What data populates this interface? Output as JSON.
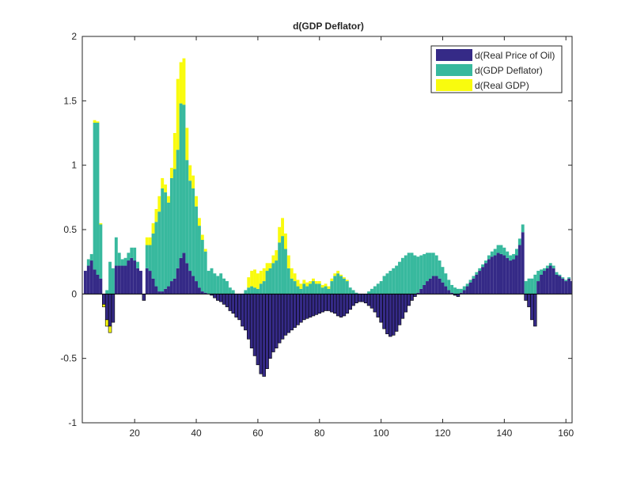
{
  "chart_data": {
    "type": "bar",
    "stacked": true,
    "title": "d(GDP Deflator)",
    "xlabel": "",
    "ylabel": "",
    "xlim": [
      3,
      162
    ],
    "ylim": [
      -1,
      2
    ],
    "xticks": [
      20,
      40,
      60,
      80,
      100,
      120,
      140,
      160
    ],
    "yticks": [
      -1,
      -0.5,
      0,
      0.5,
      1,
      1.5,
      2
    ],
    "grid": false,
    "legend_position": "top-right",
    "x_start": 4,
    "series": [
      {
        "name": "d(Real Price of Oil)",
        "color": "#352a87",
        "values": [
          0.18,
          0.22,
          0.26,
          0.19,
          0.15,
          0.12,
          -0.08,
          -0.2,
          -0.25,
          -0.22,
          0.22,
          0.22,
          0.22,
          0.22,
          0.26,
          0.28,
          0.26,
          0.2,
          0.18,
          -0.05,
          0.2,
          0.18,
          0.12,
          0.06,
          0.02,
          0.02,
          0.04,
          0.06,
          0.1,
          0.12,
          0.2,
          0.28,
          0.32,
          0.24,
          0.18,
          0.14,
          0.1,
          0.05,
          0.02,
          0.01,
          0.0,
          -0.01,
          -0.03,
          -0.05,
          -0.06,
          -0.08,
          -0.1,
          -0.13,
          -0.15,
          -0.18,
          -0.2,
          -0.25,
          -0.28,
          -0.35,
          -0.42,
          -0.48,
          -0.55,
          -0.62,
          -0.64,
          -0.58,
          -0.5,
          -0.45,
          -0.42,
          -0.38,
          -0.35,
          -0.32,
          -0.3,
          -0.28,
          -0.26,
          -0.24,
          -0.22,
          -0.2,
          -0.19,
          -0.18,
          -0.17,
          -0.16,
          -0.15,
          -0.14,
          -0.13,
          -0.13,
          -0.14,
          -0.15,
          -0.17,
          -0.18,
          -0.17,
          -0.15,
          -0.12,
          -0.09,
          -0.07,
          -0.06,
          -0.06,
          -0.07,
          -0.09,
          -0.11,
          -0.14,
          -0.18,
          -0.22,
          -0.27,
          -0.31,
          -0.33,
          -0.32,
          -0.29,
          -0.24,
          -0.19,
          -0.14,
          -0.09,
          -0.05,
          -0.02,
          0.01,
          0.04,
          0.07,
          0.1,
          0.12,
          0.14,
          0.14,
          0.12,
          0.09,
          0.06,
          0.03,
          0.01,
          -0.01,
          -0.02,
          0.01,
          0.03,
          0.06,
          0.09,
          0.12,
          0.15,
          0.18,
          0.21,
          0.24,
          0.27,
          0.29,
          0.3,
          0.32,
          0.31,
          0.3,
          0.28,
          0.26,
          0.27,
          0.3,
          0.38,
          0.48,
          -0.05,
          -0.1,
          -0.2,
          -0.25,
          0.1,
          0.15,
          0.18,
          0.2,
          0.22,
          0.2,
          0.15,
          0.14,
          0.12,
          0.1,
          0.12,
          0.1,
          0.08
        ]
      },
      {
        "name": "d(GDP Deflator)",
        "color": "#38b99e",
        "values": [
          0.0,
          0.05,
          0.05,
          1.14,
          1.18,
          0.42,
          0.0,
          0.03,
          0.25,
          0.2,
          0.22,
          0.1,
          0.05,
          0.06,
          0.06,
          0.08,
          0.1,
          0.05,
          0.0,
          0.0,
          0.18,
          0.2,
          0.35,
          0.5,
          0.62,
          0.8,
          0.75,
          0.65,
          0.8,
          0.85,
          0.92,
          1.2,
          1.15,
          0.8,
          0.7,
          0.68,
          0.58,
          0.48,
          0.4,
          0.32,
          0.18,
          0.2,
          0.16,
          0.14,
          0.16,
          0.12,
          0.1,
          0.05,
          0.03,
          0.0,
          0.0,
          0.0,
          0.03,
          0.05,
          0.06,
          0.05,
          0.04,
          0.08,
          0.1,
          0.18,
          0.2,
          0.24,
          0.26,
          0.4,
          0.45,
          0.35,
          0.2,
          0.12,
          0.1,
          0.06,
          0.04,
          0.08,
          0.06,
          0.08,
          0.1,
          0.08,
          0.08,
          0.05,
          0.06,
          0.04,
          0.1,
          0.14,
          0.16,
          0.14,
          0.12,
          0.1,
          0.05,
          0.03,
          0.01,
          0.0,
          0.0,
          0.0,
          0.02,
          0.04,
          0.06,
          0.08,
          0.1,
          0.14,
          0.16,
          0.18,
          0.2,
          0.22,
          0.25,
          0.28,
          0.3,
          0.32,
          0.32,
          0.3,
          0.28,
          0.26,
          0.24,
          0.22,
          0.2,
          0.18,
          0.16,
          0.14,
          0.12,
          0.1,
          0.08,
          0.06,
          0.05,
          0.04,
          0.03,
          0.03,
          0.02,
          0.02,
          0.02,
          0.02,
          0.02,
          0.02,
          0.02,
          0.03,
          0.04,
          0.05,
          0.06,
          0.07,
          0.06,
          0.05,
          0.04,
          0.04,
          0.05,
          0.05,
          0.06,
          0.1,
          0.12,
          0.12,
          0.15,
          0.08,
          0.04,
          0.02,
          0.02,
          0.02,
          0.02,
          0.02,
          0.01,
          0.01,
          0.01,
          0.01,
          0.0,
          0.0,
          0.0
        ]
      },
      {
        "name": "d(Real GDP)",
        "color": "#f9fb0e",
        "values": [
          0.0,
          0.0,
          0.0,
          0.02,
          0.01,
          0.01,
          -0.02,
          -0.05,
          -0.05,
          0.0,
          0.0,
          0.0,
          0.0,
          0.0,
          0.0,
          0.0,
          0.0,
          0.0,
          0.0,
          0.0,
          0.06,
          0.06,
          0.08,
          0.1,
          0.12,
          0.08,
          0.06,
          0.05,
          0.08,
          0.28,
          0.55,
          0.32,
          0.36,
          0.25,
          0.12,
          0.1,
          0.08,
          0.06,
          0.04,
          0.02,
          0.0,
          0.0,
          0.0,
          0.0,
          0.0,
          0.0,
          0.0,
          0.0,
          0.0,
          0.0,
          0.0,
          0.0,
          0.0,
          0.08,
          0.12,
          0.14,
          0.12,
          0.1,
          0.1,
          0.06,
          0.04,
          0.06,
          0.08,
          0.12,
          0.14,
          0.12,
          0.1,
          0.08,
          0.06,
          0.05,
          0.04,
          0.03,
          0.03,
          0.02,
          0.02,
          0.02,
          0.02,
          0.02,
          0.02,
          0.02,
          0.02,
          0.02,
          0.02,
          0.01,
          0.01,
          0.01,
          0.0,
          0.0,
          0.0,
          0.0,
          0.0,
          0.0,
          0.0,
          0.0,
          0.0,
          0.0,
          0.0,
          0.0,
          0.0,
          0.0,
          0.0,
          0.0,
          0.0,
          0.0,
          0.0,
          0.0,
          0.0,
          0.0,
          0.0,
          0.0,
          0.0,
          0.0,
          0.0,
          0.0,
          0.0,
          0.0,
          0.0,
          0.0,
          0.0,
          0.0,
          0.0,
          0.0,
          0.0,
          0.0,
          0.0,
          0.0,
          0.0,
          0.0,
          0.0,
          0.0,
          0.0,
          0.0,
          0.0,
          0.0,
          0.0,
          0.0,
          0.0,
          0.0,
          0.0,
          0.0,
          0.0,
          0.0,
          0.0,
          0.0,
          0.0,
          0.0,
          0.0,
          0.0,
          0.0,
          0.0,
          0.0,
          0.0,
          0.0,
          0.0,
          0.0,
          0.0,
          0.0,
          0.0,
          0.0,
          0.0,
          0.0,
          0.0,
          0.0
        ]
      }
    ]
  }
}
